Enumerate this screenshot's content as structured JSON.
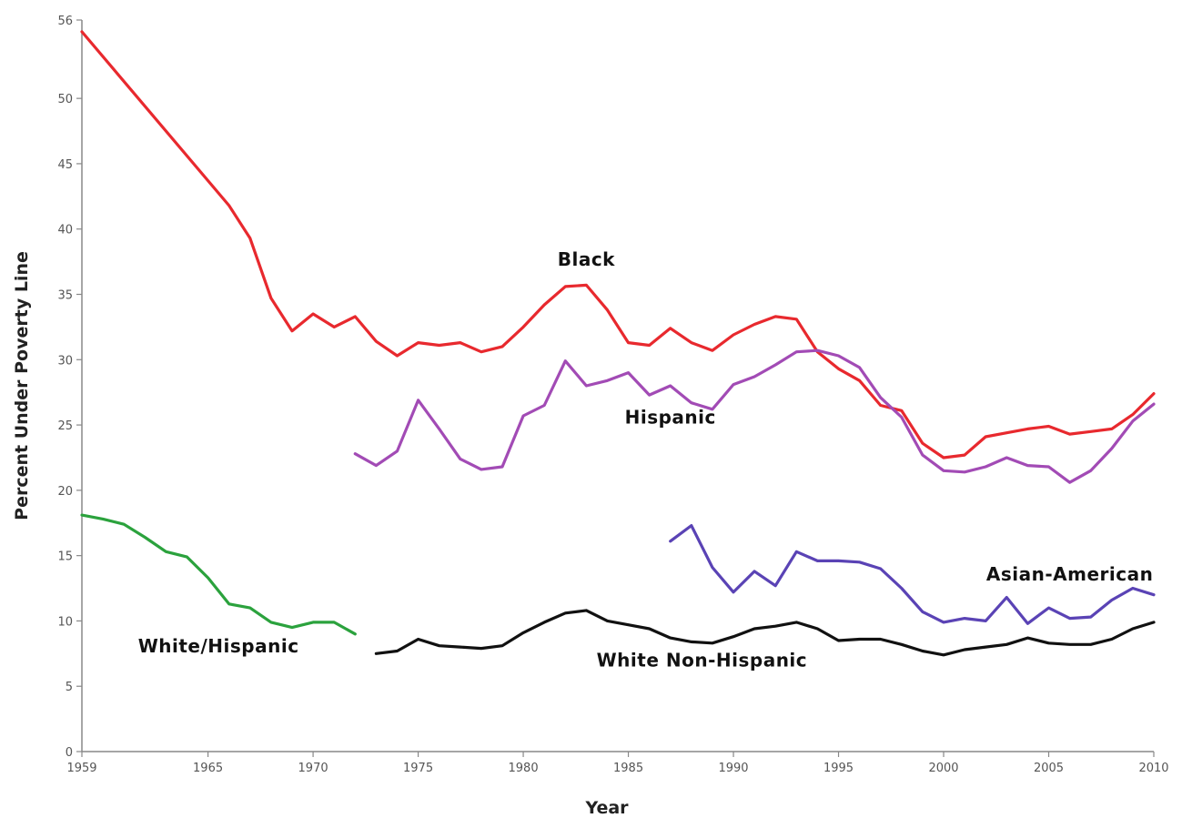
{
  "chart_data": {
    "type": "line",
    "title": "",
    "xlabel": "Year",
    "ylabel": "Percent Under Poverty Line",
    "xlim": [
      1959,
      2010
    ],
    "ylim": [
      0,
      56
    ],
    "x_ticks": [
      1959,
      1965,
      1970,
      1975,
      1980,
      1985,
      1990,
      1995,
      2000,
      2005,
      2010
    ],
    "y_ticks": [
      0,
      5,
      10,
      15,
      20,
      25,
      30,
      35,
      40,
      45,
      50,
      56
    ],
    "grid": false,
    "legend": "none (series labeled directly on chart)",
    "series": [
      {
        "name": "Black",
        "color": "#e8292e",
        "x": [
          1959,
          1966,
          1967,
          1968,
          1969,
          1970,
          1971,
          1972,
          1973,
          1974,
          1975,
          1976,
          1977,
          1978,
          1979,
          1980,
          1981,
          1982,
          1983,
          1984,
          1985,
          1986,
          1987,
          1988,
          1989,
          1990,
          1991,
          1992,
          1993,
          1994,
          1995,
          1996,
          1997,
          1998,
          1999,
          2000,
          2001,
          2002,
          2003,
          2004,
          2005,
          2006,
          2007,
          2008,
          2009,
          2010
        ],
        "values": [
          55.1,
          41.8,
          39.3,
          34.7,
          32.2,
          33.5,
          32.5,
          33.3,
          31.4,
          30.3,
          31.3,
          31.1,
          31.3,
          30.6,
          31.0,
          32.5,
          34.2,
          35.6,
          35.7,
          33.8,
          31.3,
          31.1,
          32.4,
          31.3,
          30.7,
          31.9,
          32.7,
          33.3,
          33.1,
          30.6,
          29.3,
          28.4,
          26.5,
          26.1,
          23.6,
          22.5,
          22.7,
          24.1,
          24.4,
          24.7,
          24.9,
          24.3,
          24.5,
          24.7,
          25.8,
          27.4
        ]
      },
      {
        "name": "Hispanic",
        "color": "#a24bb5",
        "x": [
          1972,
          1973,
          1974,
          1975,
          1976,
          1977,
          1978,
          1979,
          1980,
          1981,
          1982,
          1983,
          1984,
          1985,
          1986,
          1987,
          1988,
          1989,
          1990,
          1991,
          1992,
          1993,
          1994,
          1995,
          1996,
          1997,
          1998,
          1999,
          2000,
          2001,
          2002,
          2003,
          2004,
          2005,
          2006,
          2007,
          2008,
          2009,
          2010
        ],
        "values": [
          22.8,
          21.9,
          23.0,
          26.9,
          24.7,
          22.4,
          21.6,
          21.8,
          25.7,
          26.5,
          29.9,
          28.0,
          28.4,
          29.0,
          27.3,
          28.0,
          26.7,
          26.2,
          28.1,
          28.7,
          29.6,
          30.6,
          30.7,
          30.3,
          29.4,
          27.1,
          25.6,
          22.7,
          21.5,
          21.4,
          21.8,
          22.5,
          21.9,
          21.8,
          20.6,
          21.5,
          23.2,
          25.3,
          26.6
        ]
      },
      {
        "name": "Asian-American",
        "color": "#5a43b5",
        "x": [
          1987,
          1988,
          1989,
          1990,
          1991,
          1992,
          1993,
          1994,
          1995,
          1996,
          1997,
          1998,
          1999,
          2000,
          2001,
          2002,
          2003,
          2004,
          2005,
          2006,
          2007,
          2008,
          2009,
          2010
        ],
        "values": [
          16.1,
          17.3,
          14.1,
          12.2,
          13.8,
          12.7,
          15.3,
          14.6,
          14.6,
          14.5,
          14.0,
          12.5,
          10.7,
          9.9,
          10.2,
          10.0,
          11.8,
          9.8,
          11.0,
          10.2,
          10.3,
          11.6,
          12.5,
          12.0
        ]
      },
      {
        "name": "White Non-Hispanic",
        "color": "#111111",
        "x": [
          1973,
          1974,
          1975,
          1976,
          1977,
          1978,
          1979,
          1980,
          1981,
          1982,
          1983,
          1984,
          1985,
          1986,
          1987,
          1988,
          1989,
          1990,
          1991,
          1992,
          1993,
          1994,
          1995,
          1996,
          1997,
          1998,
          1999,
          2000,
          2001,
          2002,
          2003,
          2004,
          2005,
          2006,
          2007,
          2008,
          2009,
          2010
        ],
        "values": [
          7.5,
          7.7,
          8.6,
          8.1,
          8.0,
          7.9,
          8.1,
          9.1,
          9.9,
          10.6,
          10.8,
          10.0,
          9.7,
          9.4,
          8.7,
          8.4,
          8.3,
          8.8,
          9.4,
          9.6,
          9.9,
          9.4,
          8.5,
          8.6,
          8.6,
          8.2,
          7.7,
          7.4,
          7.8,
          8.0,
          8.2,
          8.7,
          8.3,
          8.2,
          8.2,
          8.6,
          9.4,
          9.9
        ]
      },
      {
        "name": "White/Hispanic",
        "color": "#2ba23d",
        "x": [
          1959,
          1960,
          1961,
          1962,
          1963,
          1964,
          1965,
          1966,
          1967,
          1968,
          1969,
          1970,
          1971,
          1972
        ],
        "values": [
          18.1,
          17.8,
          17.4,
          16.4,
          15.3,
          14.9,
          13.3,
          11.3,
          11.0,
          9.9,
          9.5,
          9.9,
          9.9,
          9.0
        ]
      }
    ],
    "series_labels": [
      {
        "text": "Black",
        "near_x": 1983.0,
        "near_y": 37.2
      },
      {
        "text": "Hispanic",
        "near_x": 1987.0,
        "near_y": 25.1
      },
      {
        "text": "Asian-American",
        "near_x": 2006.0,
        "near_y": 13.1
      },
      {
        "text": "White Non-Hispanic",
        "near_x": 1988.5,
        "near_y": 6.5
      },
      {
        "text": "White/Hispanic",
        "near_x": 1965.5,
        "near_y": 7.6
      }
    ]
  }
}
